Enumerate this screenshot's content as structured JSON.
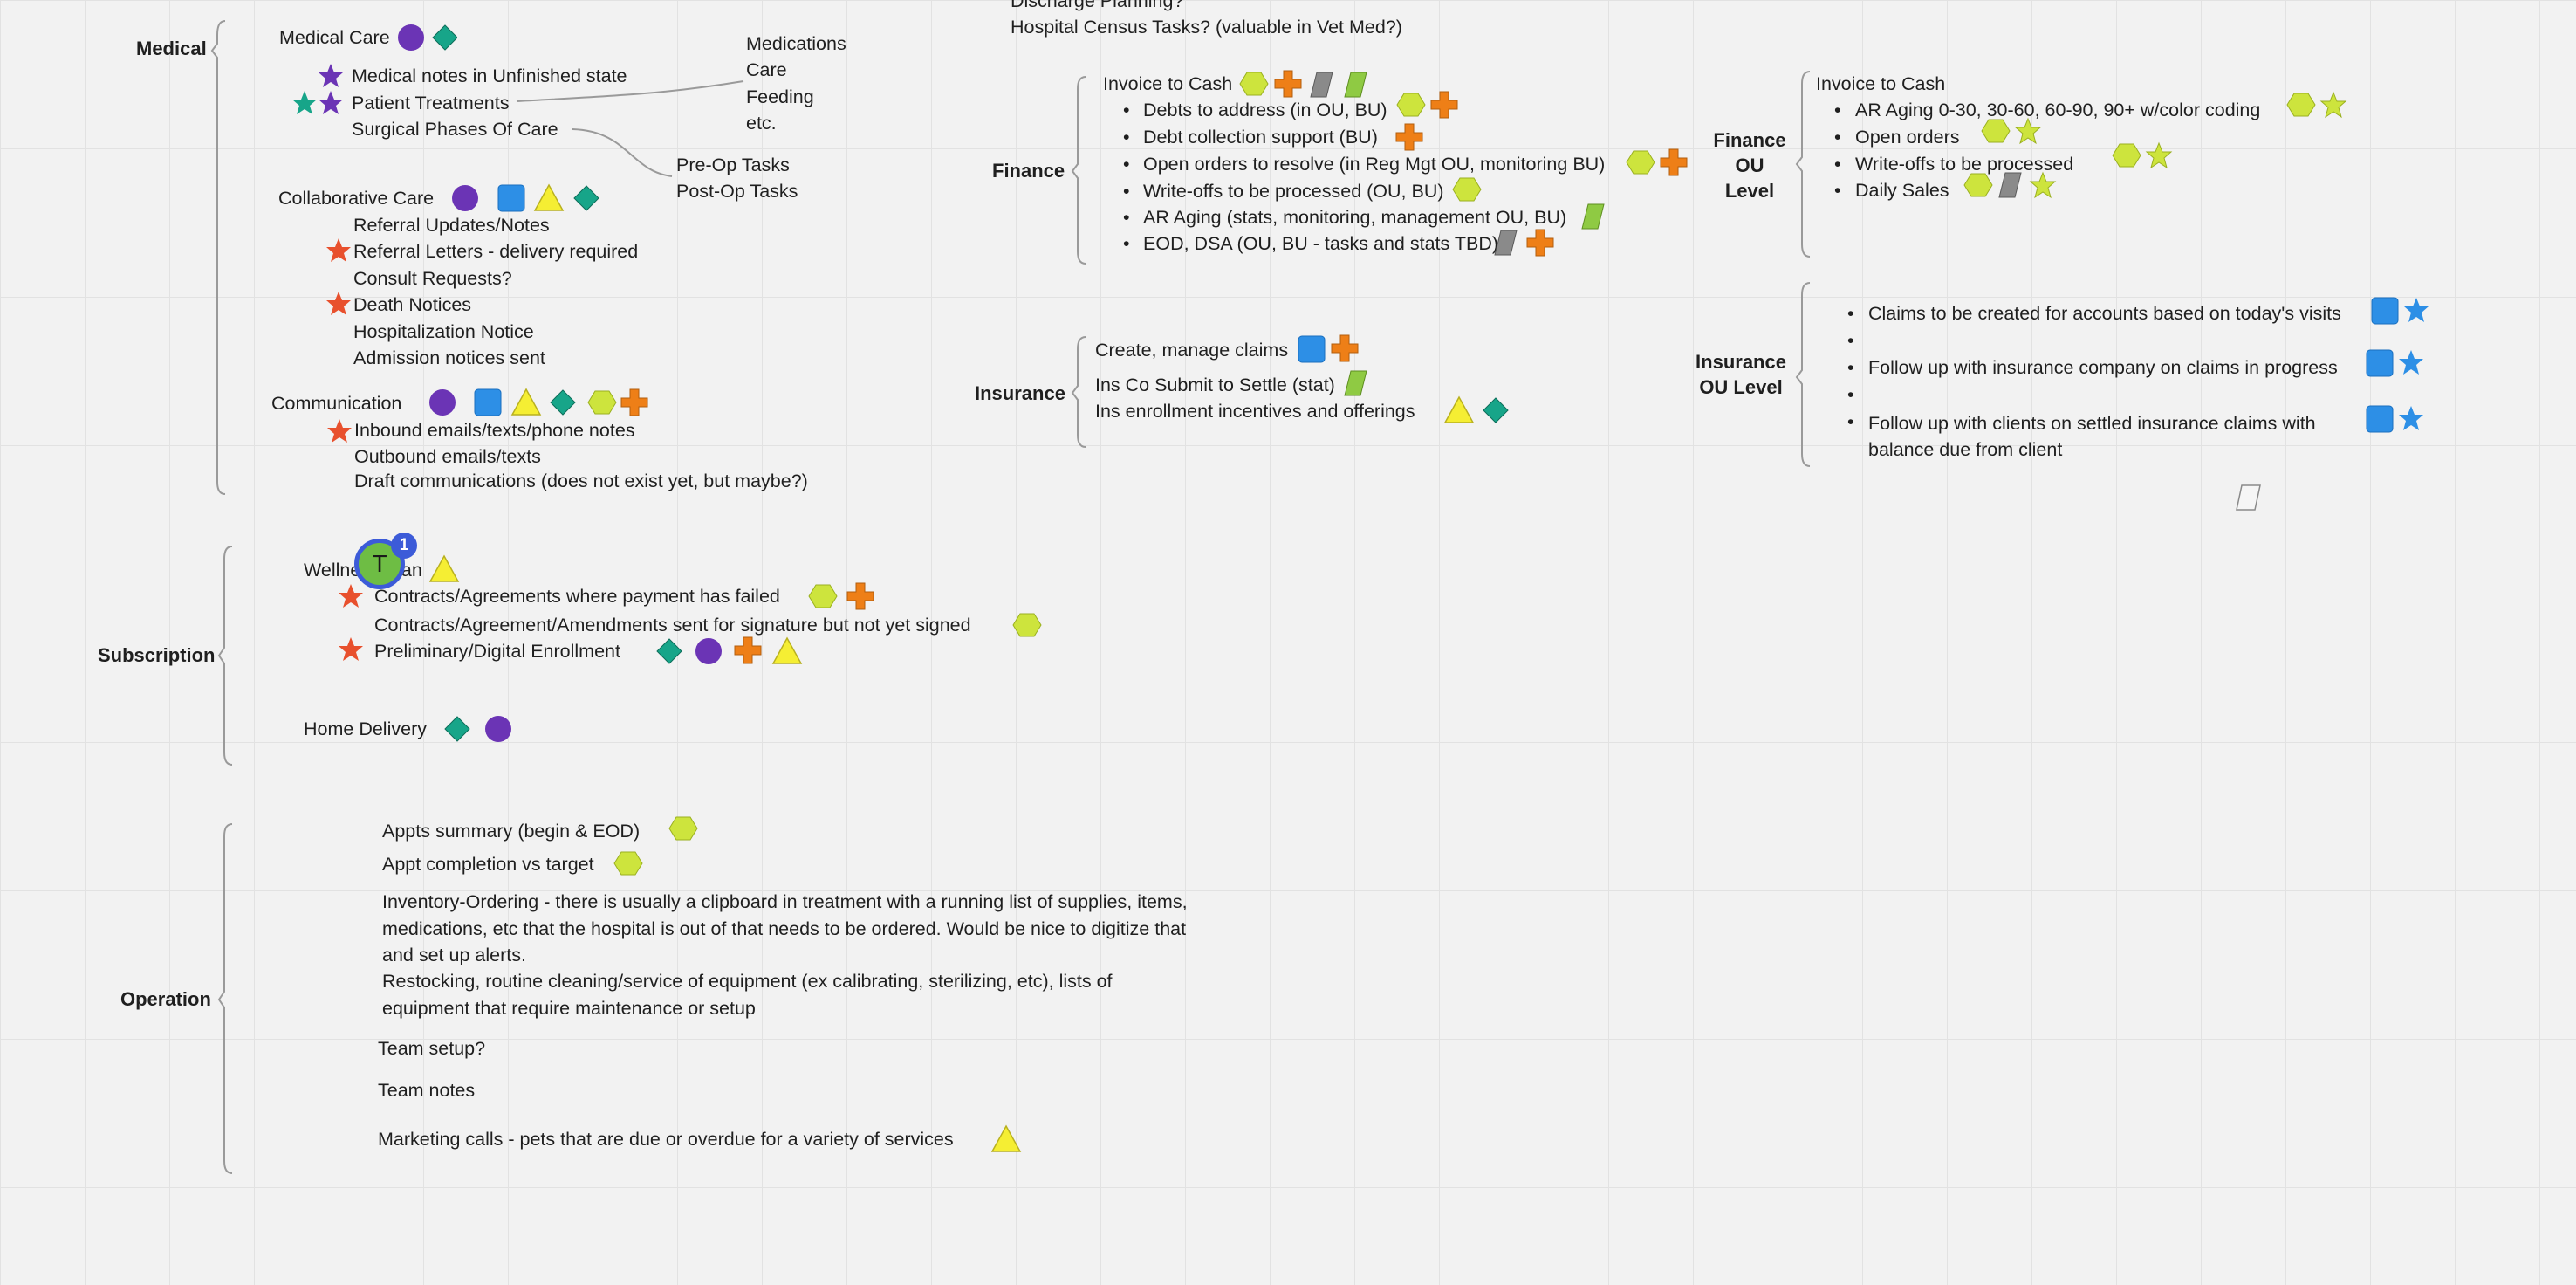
{
  "colors": {
    "purple": "#6b34b5",
    "teal": "#17a589",
    "blue": "#2d8fe6",
    "yellow": "#f5ee33",
    "lime": "#cde43d",
    "orange": "#ee7f17",
    "grey": "#8a8a8a",
    "green": "#8fca43",
    "red": "#e8502d",
    "bracket": "#9a9a9a"
  },
  "groups": {
    "medical": "Medical",
    "finance": "Finance",
    "finance_ou": "Finance\nOU\nLevel",
    "insurance": "Insurance",
    "insurance_ou": "Insurance\nOU Level",
    "subscription": "Subscription",
    "operation": "Operation"
  },
  "top": {
    "discharge": "Discharge Planning?",
    "census": "Hospital Census Tasks? (valuable in Vet Med?)"
  },
  "medical": {
    "medical_care": "Medical Care",
    "notes_unfinished": "Medical notes in Unfinished state",
    "patient_treatments": "Patient Treatments",
    "surgical_phases": "Surgical Phases Of Care",
    "side_list": [
      "Medications",
      "Care",
      "Feeding",
      "etc."
    ],
    "pre_op": "Pre-Op Tasks",
    "post_op": "Post-Op Tasks",
    "collaborative_care": "Collaborative Care",
    "referral_updates": "Referral Updates/Notes",
    "referral_letters": "Referral Letters - delivery required",
    "consult_requests": "Consult Requests?",
    "death_notices": "Death Notices",
    "hospitalization": "Hospitalization Notice",
    "admission": "Admission notices sent",
    "communication": "Communication",
    "inbound": "Inbound emails/texts/phone notes",
    "outbound": "Outbound emails/texts",
    "draft": "Draft communications (does not exist yet, but maybe?)"
  },
  "finance": {
    "invoice_to_cash": "Invoice to Cash",
    "items": [
      "Debts to address (in OU, BU)",
      "Debt collection support (BU)",
      "Open orders to resolve (in Reg Mgt OU, monitoring BU)",
      "Write-offs to be processed (OU, BU)",
      "AR Aging (stats, monitoring, management OU, BU)",
      "EOD, DSA (OU, BU - tasks and stats TBD)"
    ]
  },
  "finance_ou": {
    "invoice_to_cash": "Invoice to Cash",
    "items": [
      "AR Aging 0-30, 30-60, 60-90, 90+ w/color coding",
      "Open orders",
      "Write-offs to be processed",
      "Daily Sales"
    ]
  },
  "insurance": {
    "create_manage": "Create, manage claims",
    "submit_settle": "Ins Co Submit to Settle (stat)",
    "enrollment": "Ins enrollment incentives and offerings"
  },
  "insurance_ou": {
    "items": [
      "Claims to be created for accounts based on today's visits",
      "Follow up with insurance company on claims in progress",
      "Follow up with clients on settled insurance claims with balance due from client"
    ]
  },
  "subscription": {
    "wellness_plan": "Wellness Plan",
    "payment_failed": "Contracts/Agreements where payment has failed",
    "not_signed": "Contracts/Agreement/Amendments sent for signature but not yet signed",
    "preliminary": "Preliminary/Digital Enrollment",
    "home_delivery": "Home Delivery"
  },
  "operation": {
    "appts_summary": "Appts summary (begin & EOD)",
    "appt_completion": "Appt completion vs target",
    "inventory": "Inventory-Ordering - there is usually a clipboard in treatment with a running list of supplies, items, medications, etc that the hospital is out of that needs to be ordered. Would be nice to digitize that and set up alerts.",
    "restocking": "Restocking, routine cleaning/service of equipment (ex calibrating, sterilizing, etc), lists of equipment that require maintenance or setup",
    "team_setup": "Team setup?",
    "team_notes": "Team notes",
    "marketing": "Marketing calls - pets that are due or overdue for a variety of services"
  },
  "presence": {
    "avatar_initial": "T",
    "badge_count": "1"
  },
  "icons": {
    "purple_circle": "circle-icon",
    "teal_diamond": "diamond-icon",
    "blue_square": "square-icon",
    "yellow_triangle": "triangle-icon",
    "lime_hexagon": "hexagon-icon",
    "orange_cross": "cross-icon",
    "parallelogram": "parallelogram-icon",
    "star": "star-icon"
  }
}
